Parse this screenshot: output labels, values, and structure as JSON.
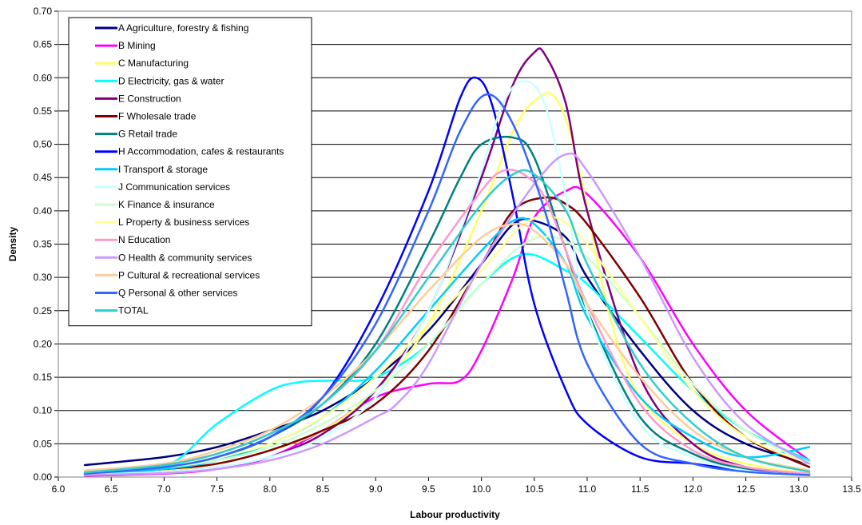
{
  "chart_data": {
    "type": "line",
    "title": "",
    "xlabel": "Labour productivity",
    "ylabel": "Density",
    "xlim": [
      6.0,
      13.5
    ],
    "ylim": [
      0.0,
      0.7
    ],
    "xticks": [
      "6.0",
      "6.5",
      "7.0",
      "7.5",
      "8.0",
      "8.5",
      "9.0",
      "9.5",
      "10.0",
      "10.5",
      "11.0",
      "11.5",
      "12.0",
      "12.5",
      "13.0",
      "13.5"
    ],
    "yticks": [
      "0.00",
      "0.05",
      "0.10",
      "0.15",
      "0.20",
      "0.25",
      "0.30",
      "0.35",
      "0.40",
      "0.45",
      "0.50",
      "0.55",
      "0.60",
      "0.65",
      "0.70"
    ],
    "grid": "horizontal",
    "legend_position": "top-left",
    "series": [
      {
        "name": "A Agriculture, forestry & fishing",
        "color": "#000080",
        "x": [
          6.25,
          7.0,
          7.5,
          8.0,
          8.5,
          9.0,
          9.5,
          10.0,
          10.3,
          10.5,
          10.8,
          11.0,
          11.5,
          12.0,
          12.5,
          13.1
        ],
        "y": [
          0.018,
          0.03,
          0.045,
          0.07,
          0.1,
          0.15,
          0.22,
          0.32,
          0.38,
          0.385,
          0.36,
          0.3,
          0.19,
          0.1,
          0.05,
          0.02
        ]
      },
      {
        "name": "B Mining",
        "color": "#ff00ff",
        "x": [
          6.25,
          7.0,
          7.5,
          8.0,
          8.5,
          9.0,
          9.5,
          9.8,
          10.0,
          10.3,
          10.5,
          10.8,
          11.0,
          11.5,
          12.0,
          12.5,
          13.1
        ],
        "y": [
          0.002,
          0.005,
          0.012,
          0.03,
          0.07,
          0.12,
          0.14,
          0.145,
          0.19,
          0.3,
          0.39,
          0.43,
          0.425,
          0.33,
          0.2,
          0.1,
          0.025
        ]
      },
      {
        "name": "C Manufacturing",
        "color": "#ffff66",
        "x": [
          6.25,
          7.0,
          7.5,
          8.0,
          8.5,
          9.0,
          9.5,
          10.0,
          10.3,
          10.5,
          10.7,
          10.9,
          11.2,
          11.5,
          12.0,
          12.5,
          13.1
        ],
        "y": [
          0.005,
          0.01,
          0.02,
          0.04,
          0.07,
          0.13,
          0.23,
          0.4,
          0.52,
          0.565,
          0.57,
          0.48,
          0.25,
          0.12,
          0.05,
          0.02,
          0.005
        ]
      },
      {
        "name": "D Electricity, gas & water",
        "color": "#00ffff",
        "x": [
          6.25,
          7.0,
          7.5,
          8.0,
          8.3,
          8.6,
          9.0,
          9.5,
          10.0,
          10.4,
          10.8,
          11.0,
          11.5,
          12.0,
          12.5,
          13.1
        ],
        "y": [
          0.005,
          0.015,
          0.08,
          0.13,
          0.143,
          0.145,
          0.15,
          0.2,
          0.29,
          0.335,
          0.31,
          0.29,
          0.21,
          0.13,
          0.07,
          0.025
        ]
      },
      {
        "name": "E Construction",
        "color": "#800080",
        "x": [
          6.25,
          7.0,
          7.5,
          8.0,
          8.5,
          9.0,
          9.5,
          10.0,
          10.3,
          10.5,
          10.6,
          10.8,
          11.0,
          11.5,
          12.0,
          12.5,
          13.1
        ],
        "y": [
          0.004,
          0.008,
          0.015,
          0.03,
          0.065,
          0.13,
          0.25,
          0.45,
          0.59,
          0.638,
          0.635,
          0.56,
          0.4,
          0.15,
          0.05,
          0.015,
          0.003
        ]
      },
      {
        "name": "F Wholesale trade",
        "color": "#800000",
        "x": [
          6.25,
          7.0,
          7.5,
          8.0,
          8.5,
          9.0,
          9.5,
          10.0,
          10.3,
          10.6,
          10.8,
          11.0,
          11.5,
          12.0,
          12.5,
          13.1
        ],
        "y": [
          0.005,
          0.012,
          0.02,
          0.04,
          0.07,
          0.11,
          0.19,
          0.32,
          0.4,
          0.42,
          0.41,
          0.38,
          0.27,
          0.14,
          0.06,
          0.015
        ]
      },
      {
        "name": "G Retail trade",
        "color": "#008080",
        "x": [
          6.25,
          7.0,
          7.5,
          8.0,
          8.5,
          9.0,
          9.5,
          9.8,
          10.0,
          10.3,
          10.5,
          10.8,
          11.0,
          11.5,
          12.0,
          12.5,
          13.1
        ],
        "y": [
          0.006,
          0.015,
          0.03,
          0.06,
          0.11,
          0.2,
          0.35,
          0.45,
          0.5,
          0.51,
          0.48,
          0.34,
          0.25,
          0.09,
          0.035,
          0.012,
          0.004
        ]
      },
      {
        "name": "H Accommodation, cafes & restaurants",
        "color": "#0000ff",
        "x": [
          6.25,
          7.0,
          7.5,
          8.0,
          8.5,
          9.0,
          9.5,
          9.8,
          9.95,
          10.1,
          10.3,
          10.5,
          10.8,
          11.0,
          11.5,
          12.0,
          12.5,
          13.1
        ],
        "y": [
          0.005,
          0.015,
          0.03,
          0.06,
          0.12,
          0.25,
          0.43,
          0.57,
          0.6,
          0.56,
          0.42,
          0.26,
          0.13,
          0.08,
          0.03,
          0.02,
          0.01,
          0.005
        ]
      },
      {
        "name": "I Transport & storage",
        "color": "#00ccff",
        "x": [
          6.25,
          7.0,
          7.5,
          8.0,
          8.5,
          9.0,
          9.5,
          10.0,
          10.3,
          10.5,
          10.8,
          11.0,
          11.5,
          12.0,
          12.5,
          13.1
        ],
        "y": [
          0.005,
          0.012,
          0.025,
          0.05,
          0.09,
          0.16,
          0.25,
          0.34,
          0.385,
          0.38,
          0.32,
          0.24,
          0.12,
          0.06,
          0.03,
          0.045
        ]
      },
      {
        "name": "J Communication services",
        "color": "#ccffff",
        "x": [
          6.25,
          7.0,
          7.5,
          8.0,
          8.5,
          9.0,
          9.5,
          9.8,
          10.0,
          10.2,
          10.4,
          10.6,
          10.8,
          11.0,
          11.5,
          12.0,
          12.5,
          13.1
        ],
        "y": [
          0.003,
          0.008,
          0.015,
          0.03,
          0.06,
          0.12,
          0.25,
          0.37,
          0.46,
          0.56,
          0.595,
          0.56,
          0.42,
          0.25,
          0.08,
          0.03,
          0.01,
          0.003
        ]
      },
      {
        "name": "K Finance & insurance",
        "color": "#ccffcc",
        "x": [
          6.25,
          7.0,
          7.5,
          8.0,
          8.5,
          9.0,
          9.5,
          10.0,
          10.4,
          10.7,
          11.0,
          11.5,
          12.0,
          12.5,
          13.1
        ],
        "y": [
          0.008,
          0.015,
          0.025,
          0.045,
          0.08,
          0.13,
          0.2,
          0.29,
          0.35,
          0.36,
          0.33,
          0.24,
          0.14,
          0.07,
          0.02
        ]
      },
      {
        "name": "L Property & business services",
        "color": "#ffff99",
        "x": [
          6.25,
          7.0,
          7.5,
          8.0,
          8.5,
          9.0,
          9.5,
          10.0,
          10.4,
          10.7,
          11.0,
          11.5,
          12.0,
          12.5,
          13.1
        ],
        "y": [
          0.007,
          0.015,
          0.03,
          0.05,
          0.09,
          0.15,
          0.23,
          0.31,
          0.38,
          0.39,
          0.35,
          0.24,
          0.13,
          0.06,
          0.02
        ]
      },
      {
        "name": "N Education",
        "color": "#ff99cc",
        "x": [
          6.25,
          7.0,
          7.5,
          8.0,
          8.5,
          9.0,
          9.5,
          10.0,
          10.2,
          10.4,
          10.6,
          10.8,
          11.0,
          11.5,
          12.0,
          12.5,
          13.1
        ],
        "y": [
          0.008,
          0.02,
          0.035,
          0.065,
          0.11,
          0.19,
          0.32,
          0.43,
          0.46,
          0.455,
          0.42,
          0.34,
          0.26,
          0.11,
          0.04,
          0.015,
          0.005
        ]
      },
      {
        "name": "O Health & community services",
        "color": "#cc99ff",
        "x": [
          6.25,
          7.0,
          7.5,
          8.0,
          8.5,
          9.0,
          9.2,
          9.5,
          10.0,
          10.5,
          10.8,
          11.0,
          11.5,
          12.0,
          12.5,
          13.1
        ],
        "y": [
          0.003,
          0.006,
          0.012,
          0.025,
          0.05,
          0.09,
          0.11,
          0.17,
          0.32,
          0.44,
          0.485,
          0.46,
          0.33,
          0.18,
          0.08,
          0.02
        ]
      },
      {
        "name": "P Cultural & recreational services",
        "color": "#ffcc99",
        "x": [
          6.25,
          7.0,
          7.5,
          8.0,
          8.5,
          9.0,
          9.5,
          10.0,
          10.3,
          10.5,
          10.8,
          11.0,
          11.5,
          12.0,
          12.5,
          13.1
        ],
        "y": [
          0.01,
          0.02,
          0.04,
          0.07,
          0.12,
          0.19,
          0.28,
          0.36,
          0.38,
          0.37,
          0.32,
          0.26,
          0.15,
          0.07,
          0.03,
          0.01
        ]
      },
      {
        "name": "Q Personal & other services",
        "color": "#3366ff",
        "x": [
          6.25,
          7.0,
          7.5,
          8.0,
          8.5,
          9.0,
          9.5,
          9.8,
          10.05,
          10.3,
          10.6,
          10.8,
          11.0,
          11.5,
          12.0,
          12.5,
          13.1
        ],
        "y": [
          0.005,
          0.015,
          0.03,
          0.06,
          0.12,
          0.23,
          0.4,
          0.52,
          0.575,
          0.53,
          0.4,
          0.28,
          0.17,
          0.05,
          0.02,
          0.008,
          0.003
        ]
      },
      {
        "name": "TOTAL",
        "color": "#33cccc",
        "x": [
          6.25,
          7.0,
          7.5,
          8.0,
          8.5,
          9.0,
          9.5,
          10.0,
          10.3,
          10.5,
          10.8,
          11.0,
          11.5,
          12.0,
          12.5,
          13.1
        ],
        "y": [
          0.007,
          0.018,
          0.035,
          0.065,
          0.11,
          0.19,
          0.3,
          0.41,
          0.455,
          0.455,
          0.4,
          0.32,
          0.17,
          0.08,
          0.03,
          0.008
        ]
      }
    ]
  }
}
